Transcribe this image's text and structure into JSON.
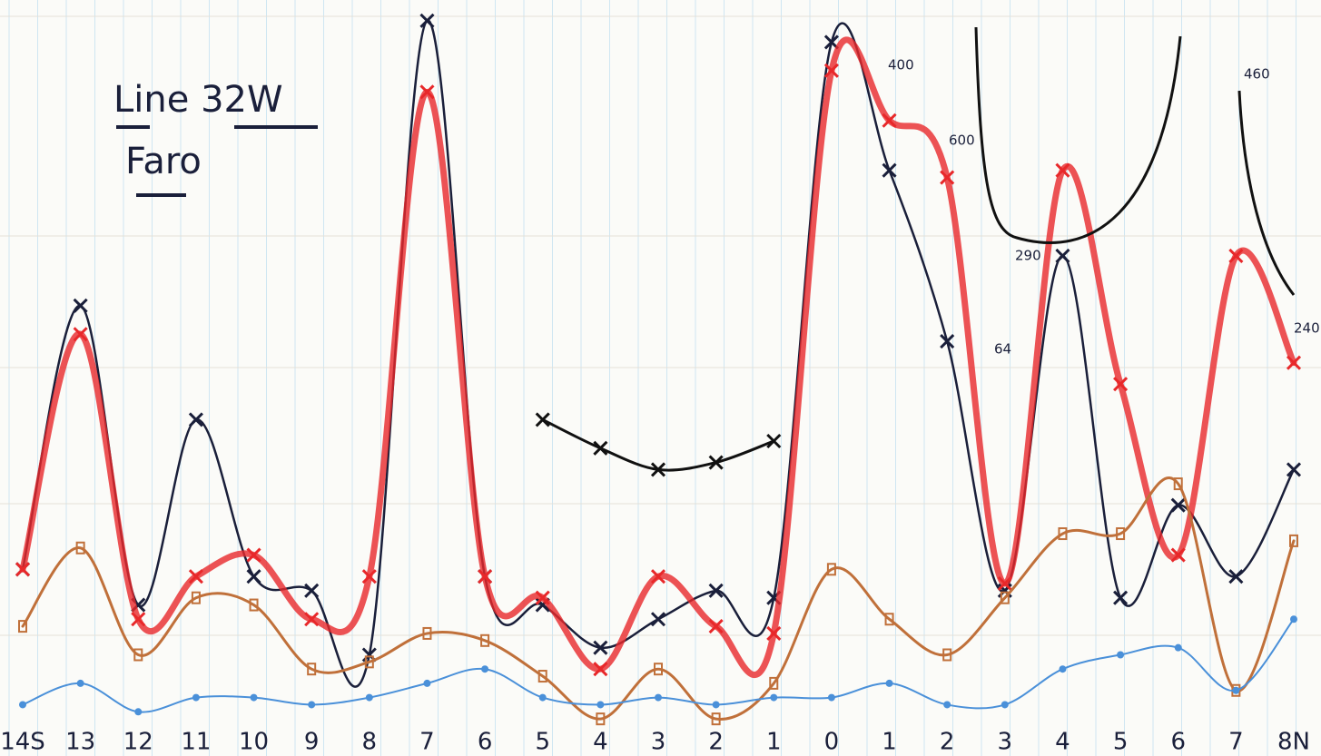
{
  "chart_data": {
    "type": "line",
    "title": "Line 32W",
    "subtitle": "Faro",
    "categories": [
      "14S",
      "13",
      "12",
      "11",
      "10",
      "9",
      "8",
      "7",
      "6",
      "5",
      "4",
      "3",
      "2",
      "1",
      "0",
      "1",
      "2",
      "3",
      "4",
      "5",
      "6",
      "7",
      "8N"
    ],
    "ylim": [
      0,
      100
    ],
    "grid": true,
    "series": [
      {
        "color": "#1a1f3a",
        "values": [
          22,
          59,
          17,
          43,
          21,
          19,
          10,
          99,
          21,
          17,
          11,
          15,
          19,
          18,
          96,
          78,
          54,
          19,
          66,
          18,
          31,
          21,
          36
        ]
      },
      {
        "color": "#e8282a",
        "values": [
          22,
          55,
          15,
          21,
          24,
          15,
          21,
          89,
          21,
          18,
          8,
          21,
          14,
          13,
          92,
          85,
          77,
          20,
          78,
          48,
          24,
          66,
          51
        ]
      },
      {
        "color": "#c0703a",
        "values": [
          14,
          25,
          10,
          18,
          17,
          8,
          9,
          13,
          12,
          7,
          1,
          8,
          1,
          6,
          22,
          15,
          10,
          18,
          27,
          27,
          34,
          5,
          26
        ]
      },
      {
        "color": "#4a90d9",
        "values": [
          3,
          6,
          2,
          4,
          4,
          3,
          4,
          6,
          8,
          4,
          3,
          4,
          3,
          4,
          4,
          6,
          3,
          3,
          8,
          10,
          11,
          5,
          15
        ]
      },
      {
        "color": "#111111",
        "values": [
          null,
          null,
          null,
          null,
          null,
          null,
          null,
          null,
          null,
          43,
          39,
          36,
          37,
          40,
          null,
          null,
          null,
          null,
          null,
          null,
          null,
          null,
          null
        ]
      }
    ],
    "annotations": [
      "400",
      "600",
      "290",
      "460",
      "240",
      "64"
    ]
  }
}
